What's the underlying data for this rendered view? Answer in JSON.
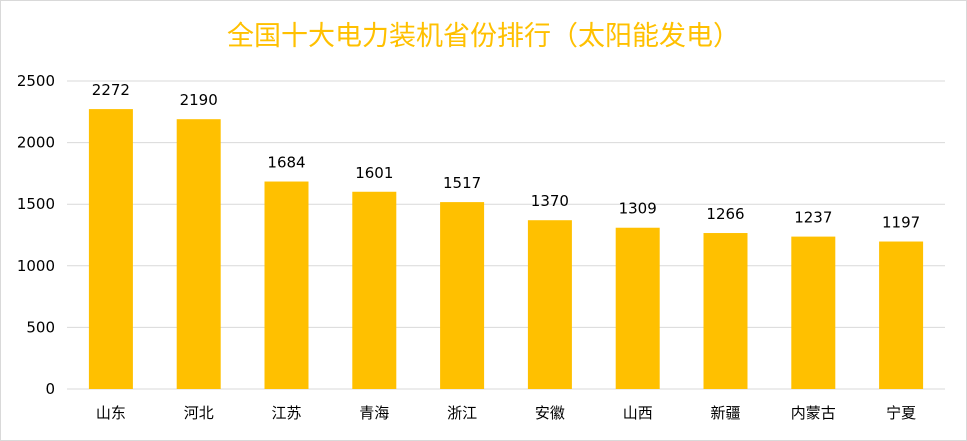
{
  "chart_data": {
    "type": "bar",
    "title": "全国十大电力装机省份排行（太阳能发电）",
    "categories": [
      "山东",
      "河北",
      "江苏",
      "青海",
      "浙江",
      "安徽",
      "山西",
      "新疆",
      "内蒙古",
      "宁夏"
    ],
    "values": [
      2272,
      2190,
      1684,
      1601,
      1517,
      1370,
      1309,
      1266,
      1237,
      1197
    ],
    "ylim": [
      0,
      2500
    ],
    "yticks": [
      0,
      500,
      1000,
      1500,
      2000,
      2500
    ],
    "grid": true,
    "data_labels": true,
    "xlabel": "",
    "ylabel": "",
    "colors": {
      "bar": "#ffc000",
      "title": "#ffc000",
      "grid": "#d9d9d9"
    }
  }
}
